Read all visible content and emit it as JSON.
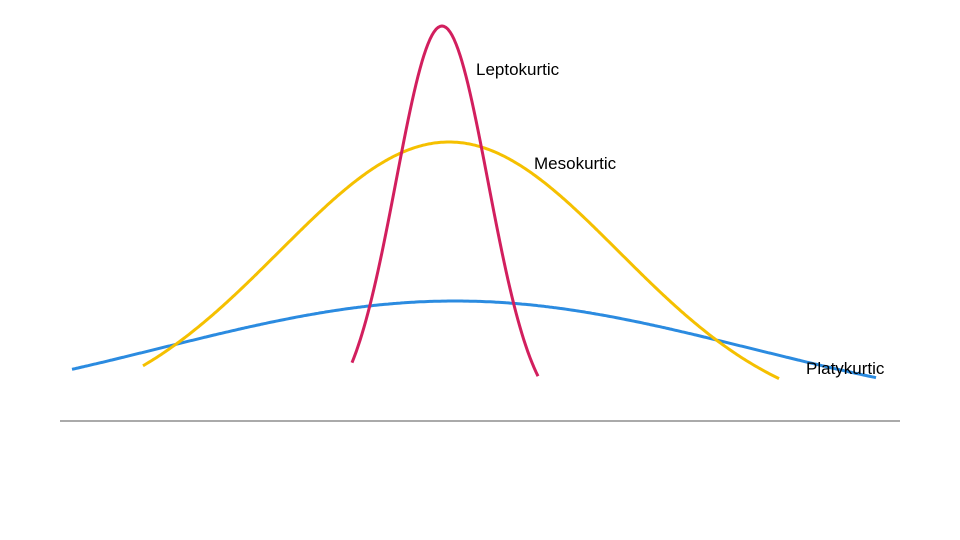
{
  "curves": [
    {
      "id": "leptokurtic",
      "label": "Leptokurtic",
      "color": "#d21f5e"
    },
    {
      "id": "mesokurtic",
      "label": "Mesokurtic",
      "color": "#f5c000"
    },
    {
      "id": "platykurtic",
      "label": "Platykurtic",
      "color": "#2b8be0"
    }
  ],
  "baseline_color": "#555555"
}
